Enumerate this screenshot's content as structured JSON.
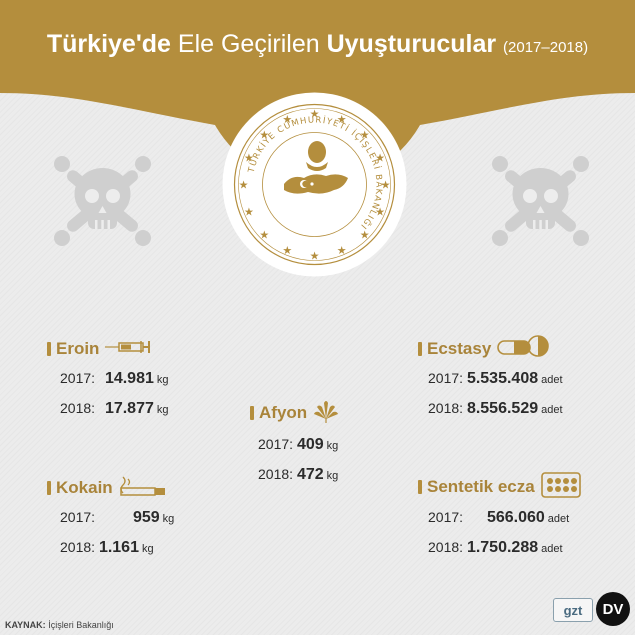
{
  "header": {
    "title_part1": "Türkiye'de",
    "title_part2": "Ele Geçirilen",
    "title_part3": "Uyuşturucular",
    "years": "(2017–2018)"
  },
  "seal": {
    "text": "TÜRKİYE CUMHURİYETİ İÇİŞLERİ BAKANLIĞI"
  },
  "colors": {
    "gold": "#b48e3d",
    "accent_text": "#a9843a",
    "background": "#ededed"
  },
  "categories": {
    "eroin": {
      "name": "Eroin",
      "icon": "syringe-icon",
      "rows": [
        {
          "year": "2017:",
          "value": "14.981",
          "unit": "kg"
        },
        {
          "year": "2018:",
          "value": "17.877",
          "unit": "kg"
        }
      ]
    },
    "kokain": {
      "name": "Kokain",
      "icon": "cigarette-icon",
      "rows": [
        {
          "year": "2017:",
          "value": "959",
          "unit": "kg"
        },
        {
          "year": "2018:",
          "value": "1.161",
          "unit": "kg"
        }
      ]
    },
    "afyon": {
      "name": "Afyon",
      "icon": "leaf-icon",
      "rows": [
        {
          "year": "2017:",
          "value": "409",
          "unit": "kg"
        },
        {
          "year": "2018:",
          "value": "472",
          "unit": "kg"
        }
      ]
    },
    "ecstasy": {
      "name": "Ecstasy",
      "icon": "pill-icon",
      "rows": [
        {
          "year": "2017:",
          "value": "5.535.408",
          "unit": "adet"
        },
        {
          "year": "2018:",
          "value": "8.556.529",
          "unit": "adet"
        }
      ]
    },
    "sentetik": {
      "name": "Sentetik ecza",
      "icon": "blister-pack-icon",
      "rows": [
        {
          "year": "2017:",
          "value": "566.060",
          "unit": "adet"
        },
        {
          "year": "2018:",
          "value": "1.750.288",
          "unit": "adet"
        }
      ]
    }
  },
  "footer": {
    "source_label": "KAYNAK:",
    "source_value": "İçişleri Bakanlığı",
    "logo_gzt": "gzt",
    "logo_dv": "DV"
  }
}
